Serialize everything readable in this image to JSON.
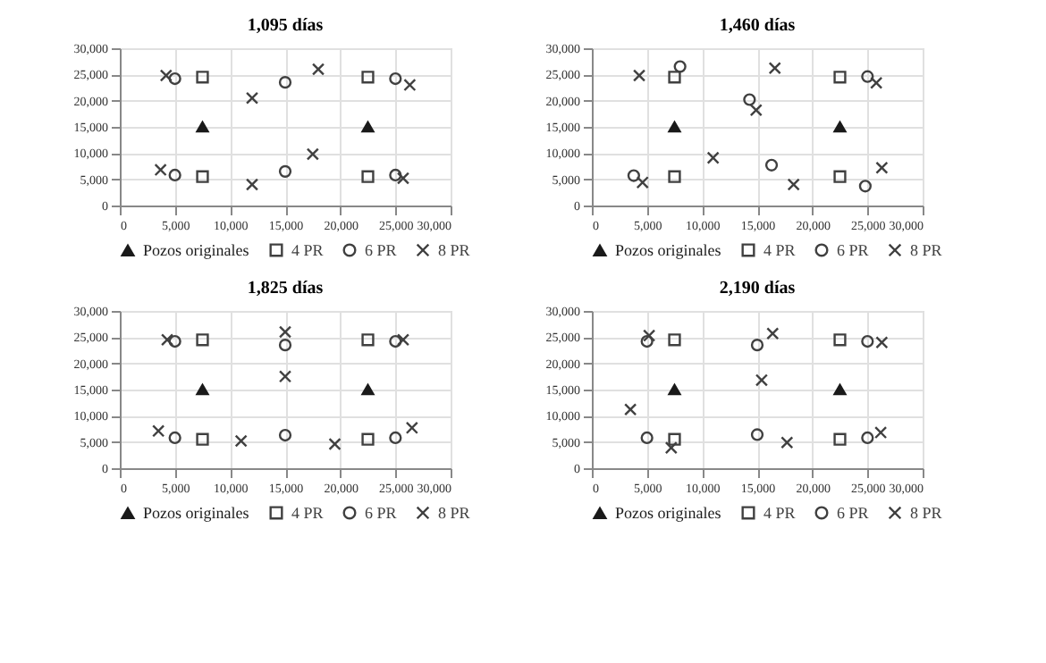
{
  "chart_data": [
    {
      "type": "scatter",
      "title": "1,095 días",
      "xlim": [
        0,
        30000
      ],
      "ylim": [
        0,
        30000
      ],
      "xticks": [
        0,
        {
          "value": 5000,
          "label": "5,000"
        },
        {
          "value": 10000,
          "label": "10,000"
        },
        {
          "value": 15000,
          "label": "15,000"
        },
        {
          "value": 20000,
          "label": "20,000"
        },
        {
          "value": 25000,
          "label": "25,000"
        },
        {
          "value": 30000,
          "label": "30,000"
        }
      ],
      "yticks": [
        0,
        {
          "value": 5000,
          "label": "5,000"
        },
        {
          "value": 10000,
          "label": "10,000"
        },
        {
          "value": 15000,
          "label": "15,000"
        },
        {
          "value": 20000,
          "label": "20,000"
        },
        {
          "value": 25000,
          "label": "25,000"
        },
        {
          "value": 30000,
          "label": "30,000"
        }
      ],
      "grid": true,
      "legend": "bottom",
      "series": [
        {
          "name": "Pozos originales",
          "color": "#1a1a1a",
          "marker": "triangle",
          "x": [
            7500,
            22500
          ],
          "values": [
            15000,
            15000
          ]
        },
        {
          "name": "4 PR",
          "color": "#404040",
          "marker": "square",
          "x": [
            7500,
            22500,
            7500,
            22500
          ],
          "values": [
            24500,
            24500,
            5500,
            5500
          ]
        },
        {
          "name": "6 PR",
          "color": "#404040",
          "marker": "circle",
          "x": [
            5000,
            15000,
            25000,
            5000,
            15000,
            25000
          ],
          "values": [
            24200,
            23500,
            24200,
            5800,
            6500,
            5800
          ]
        },
        {
          "name": "8 PR",
          "color": "#404040",
          "marker": "cross",
          "x": [
            4200,
            12000,
            18000,
            26300,
            3700,
            12000,
            17500,
            25700
          ],
          "values": [
            24800,
            20500,
            26000,
            23000,
            6800,
            4000,
            9800,
            5200
          ]
        }
      ]
    },
    {
      "type": "scatter",
      "title": "1,460 días",
      "xlim": [
        0,
        30000
      ],
      "ylim": [
        0,
        30000
      ],
      "xticks": [
        0,
        {
          "value": 5000,
          "label": "5,000"
        },
        {
          "value": 10000,
          "label": "10,000"
        },
        {
          "value": 15000,
          "label": "15,000"
        },
        {
          "value": 20000,
          "label": "20,000"
        },
        {
          "value": 25000,
          "label": "25,000"
        },
        {
          "value": 30000,
          "label": "30,000"
        }
      ],
      "yticks": [
        0,
        {
          "value": 5000,
          "label": "5,000"
        },
        {
          "value": 10000,
          "label": "10,000"
        },
        {
          "value": 15000,
          "label": "15,000"
        },
        {
          "value": 20000,
          "label": "20,000"
        },
        {
          "value": 25000,
          "label": "25,000"
        },
        {
          "value": 30000,
          "label": "30,000"
        }
      ],
      "grid": true,
      "legend": "bottom",
      "series": [
        {
          "name": "Pozos originales",
          "color": "#1a1a1a",
          "marker": "triangle",
          "x": [
            7500,
            22500
          ],
          "values": [
            15000,
            15000
          ]
        },
        {
          "name": "4 PR",
          "color": "#404040",
          "marker": "square",
          "x": [
            7500,
            22500,
            7500,
            22500
          ],
          "values": [
            24500,
            24500,
            5500,
            5500
          ]
        },
        {
          "name": "6 PR",
          "color": "#404040",
          "marker": "circle",
          "x": [
            8000,
            14300,
            25000,
            3800,
            16300,
            24800
          ],
          "values": [
            26500,
            20200,
            24600,
            5700,
            7700,
            3700
          ]
        },
        {
          "name": "8 PR",
          "color": "#404040",
          "marker": "cross",
          "x": [
            4300,
            16600,
            14900,
            25800,
            11000,
            4600,
            18300,
            26300
          ],
          "values": [
            24800,
            26200,
            18200,
            23400,
            9100,
            4400,
            4000,
            7200
          ]
        }
      ]
    },
    {
      "type": "scatter",
      "title": "1,825 días",
      "xlim": [
        0,
        30000
      ],
      "ylim": [
        0,
        30000
      ],
      "xticks": [
        0,
        {
          "value": 5000,
          "label": "5,000"
        },
        {
          "value": 10000,
          "label": "10,000"
        },
        {
          "value": 15000,
          "label": "15,000"
        },
        {
          "value": 20000,
          "label": "20,000"
        },
        {
          "value": 25000,
          "label": "25,000"
        },
        {
          "value": 30000,
          "label": "30,000"
        }
      ],
      "yticks": [
        0,
        {
          "value": 5000,
          "label": "5,000"
        },
        {
          "value": 10000,
          "label": "10,000"
        },
        {
          "value": 15000,
          "label": "15,000"
        },
        {
          "value": 20000,
          "label": "20,000"
        },
        {
          "value": 25000,
          "label": "25,000"
        },
        {
          "value": 30000,
          "label": "30,000"
        }
      ],
      "grid": true,
      "legend": "bottom",
      "series": [
        {
          "name": "Pozos originales",
          "color": "#1a1a1a",
          "marker": "triangle",
          "x": [
            7500,
            22500
          ],
          "values": [
            15000,
            15000
          ]
        },
        {
          "name": "4 PR",
          "color": "#404040",
          "marker": "square",
          "x": [
            7500,
            22500,
            7500,
            22500
          ],
          "values": [
            24500,
            24500,
            5500,
            5500
          ]
        },
        {
          "name": "6 PR",
          "color": "#404040",
          "marker": "circle",
          "x": [
            5000,
            15000,
            25000,
            5000,
            15000,
            25000
          ],
          "values": [
            24200,
            23500,
            24200,
            5800,
            6300,
            5800
          ]
        },
        {
          "name": "8 PR",
          "color": "#404040",
          "marker": "cross",
          "x": [
            4300,
            15000,
            15000,
            25700,
            3500,
            11000,
            19500,
            26500
          ],
          "values": [
            24500,
            26000,
            17500,
            24500,
            7100,
            5200,
            4600,
            7700
          ]
        }
      ]
    },
    {
      "type": "scatter",
      "title": "2,190 días",
      "xlim": [
        0,
        30000
      ],
      "ylim": [
        0,
        30000
      ],
      "xticks": [
        0,
        {
          "value": 5000,
          "label": "5,000"
        },
        {
          "value": 10000,
          "label": "10,000"
        },
        {
          "value": 15000,
          "label": "15,000"
        },
        {
          "value": 20000,
          "label": "20,000"
        },
        {
          "value": 25000,
          "label": "25,000"
        },
        {
          "value": 30000,
          "label": "30,000"
        }
      ],
      "yticks": [
        0,
        {
          "value": 5000,
          "label": "5,000"
        },
        {
          "value": 10000,
          "label": "10,000"
        },
        {
          "value": 15000,
          "label": "15,000"
        },
        {
          "value": 20000,
          "label": "20,000"
        },
        {
          "value": 25000,
          "label": "25,000"
        },
        {
          "value": 30000,
          "label": "30,000"
        }
      ],
      "grid": true,
      "legend": "bottom",
      "series": [
        {
          "name": "Pozos originales",
          "color": "#1a1a1a",
          "marker": "triangle",
          "x": [
            7500,
            22500
          ],
          "values": [
            15000,
            15000
          ]
        },
        {
          "name": "4 PR",
          "color": "#404040",
          "marker": "square",
          "x": [
            7500,
            22500,
            7500,
            22500
          ],
          "values": [
            24500,
            24500,
            5500,
            5500
          ]
        },
        {
          "name": "6 PR",
          "color": "#404040",
          "marker": "circle",
          "x": [
            5000,
            15000,
            25000,
            5000,
            15000,
            25000
          ],
          "values": [
            24200,
            23500,
            24200,
            5800,
            6400,
            5800
          ]
        },
        {
          "name": "8 PR",
          "color": "#404040",
          "marker": "cross",
          "x": [
            5200,
            16400,
            15400,
            26300,
            3500,
            7200,
            17700,
            26200
          ],
          "values": [
            25300,
            25700,
            16800,
            24000,
            11200,
            3900,
            4900,
            6800
          ]
        }
      ]
    }
  ]
}
